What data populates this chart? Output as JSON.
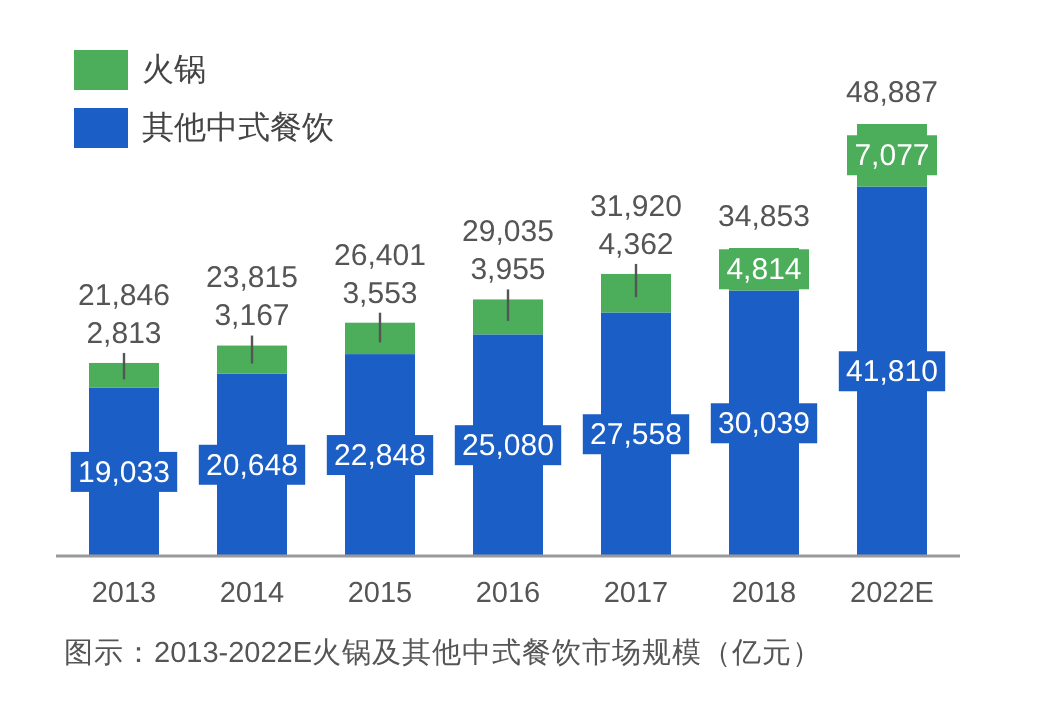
{
  "chart_data": {
    "type": "bar",
    "stacked": true,
    "legend": "top left",
    "categories": [
      "2013",
      "2014",
      "2015",
      "2016",
      "2017",
      "2018",
      "2022E"
    ],
    "series": [
      {
        "name": "其他中式餐饮",
        "color": "#1b5fc6",
        "values": [
          19033,
          20648,
          22848,
          25080,
          27558,
          30039,
          41810
        ],
        "value_labels": [
          "19,033",
          "20,648",
          "22,848",
          "25,080",
          "27,558",
          "30,039",
          "41,810"
        ]
      },
      {
        "name": "火锅",
        "color": "#4cad5b",
        "values": [
          2813,
          3167,
          3553,
          3955,
          4362,
          4814,
          7077
        ],
        "value_labels": [
          "2,813",
          "3,167",
          "3,553",
          "3,955",
          "4,362",
          "4,814",
          "7,077"
        ]
      }
    ],
    "totals": [
      "21,846",
      "23,815",
      "26,401",
      "29,035",
      "31,920",
      "34,853",
      "48,887"
    ],
    "annotations": [
      "图示：2013-2022E火锅及其他中式餐饮市场规模（亿元）"
    ]
  }
}
